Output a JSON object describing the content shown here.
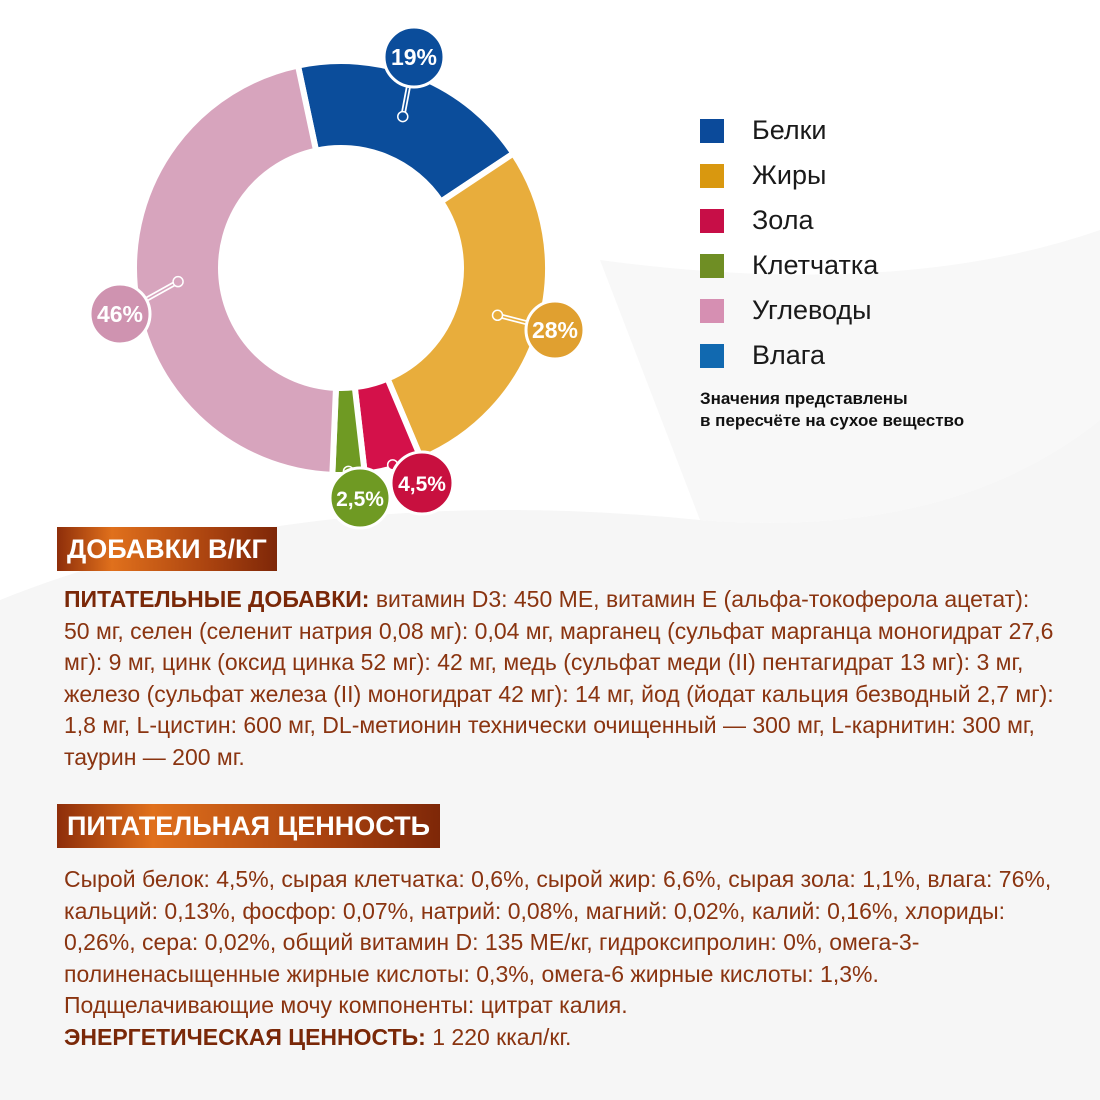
{
  "chart_data": {
    "type": "pie",
    "donut": true,
    "categories": [
      "Белки",
      "Жиры",
      "Зола",
      "Клетчатка",
      "Углеводы"
    ],
    "values": [
      19,
      28,
      4.5,
      2.5,
      46
    ],
    "labels": [
      "19%",
      "28%",
      "4,5%",
      "2,5%",
      "46%"
    ],
    "colors": [
      "#0b4d9b",
      "#e8ad3c",
      "#d4114a",
      "#6f9a23",
      "#d7a4bd"
    ],
    "label_colors": [
      "#0b4d9b",
      "#e0a030",
      "#c8103f",
      "#6f9a23",
      "#cf93b0"
    ]
  },
  "legend": {
    "items": [
      {
        "label": "Белки",
        "color": "#0b4a9a"
      },
      {
        "label": "Жиры",
        "color": "#d9980f"
      },
      {
        "label": "Зола",
        "color": "#c70e47"
      },
      {
        "label": "Клетчатка",
        "color": "#6f8e24"
      },
      {
        "label": "Углеводы",
        "color": "#d68fb2"
      },
      {
        "label": "Влага",
        "color": "#1169b0"
      }
    ],
    "note_line1": "Значения представлены",
    "note_line2": "в пересчёте на сухое вещество"
  },
  "additives": {
    "title": "ДОБАВКИ В/КГ",
    "lead": "ПИТАТЕЛЬНЫЕ ДОБАВКИ:",
    "text": " витамин D3: 450 МЕ, витамин Е (альфа-токоферола ацетат): 50 мг, селен (селенит натрия 0,08 мг): 0,04 мг, марганец (сульфат мар­ганца моногидрат 27,6 мг): 9 мг, цинк (оксид цинка 52 мг): 42 мг, медь (сульфат меди (II) пентагидрат 13 мг): 3 мг, железо (сульфат железа (II) моногидрат 42 мг): 14 мг, йод (йодат кальция безводный 2,7 мг): 1,8 мг, L-цистин: 600 мг, DL-ме­тионин технически очищенный — 300 мг, L-карнитин: 300 мг, таурин — 200 мг."
  },
  "nutrition": {
    "title": "ПИТАТЕЛЬНАЯ ЦЕННОСТЬ",
    "text": "Сырой белок: 4,5%, сырая клетчатка: 0,6%, сырой жир: 6,6%, сырая зола: 1,1%, влага: 76%, кальций: 0,13%, фосфор: 0,07%, натрий: 0,08%, магний: 0,02%, калий: 0,16%, хлориды: 0,26%, сера: 0,02%, общий витамин D: 135 МЕ/кг, гидрокси­пролин: 0%, омега-3-полиненасыщенные жирные кислоты: 0,3%, омега-6 жирные кислоты: 1,3%. Подщелачивающие мочу компоненты: цитрат калия.",
    "energy_label": "ЭНЕРГЕТИЧЕСКАЯ ЦЕННОСТЬ:",
    "energy_value": " 1 220 ккал/кг."
  }
}
